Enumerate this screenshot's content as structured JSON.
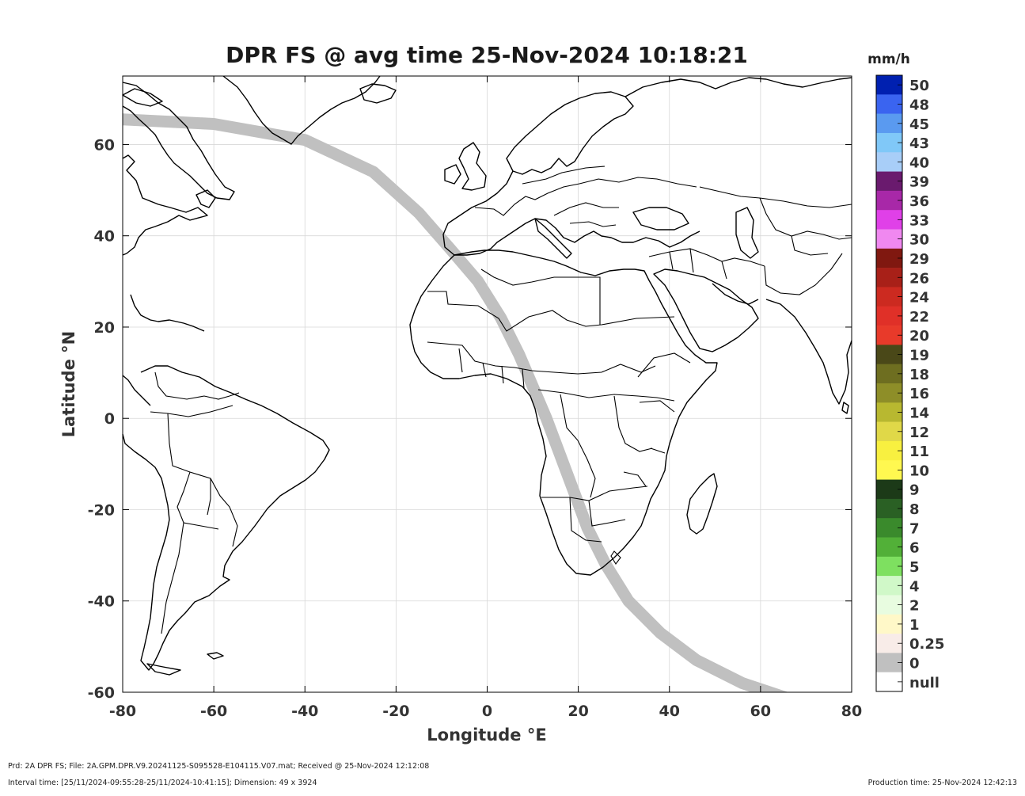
{
  "title": "DPR FS @ avg time 25-Nov-2024 10:18:21",
  "xlabel": "Longitude °E",
  "ylabel": "Latitude °N",
  "map": {
    "lon_range": [
      -80,
      80
    ],
    "lat_range": [
      -60,
      75
    ],
    "x_ticks": [
      "-80",
      "-60",
      "-40",
      "-20",
      "0",
      "20",
      "40",
      "60",
      "80"
    ],
    "y_ticks": [
      "60",
      "40",
      "20",
      "0",
      "-20",
      "-40",
      "-60"
    ],
    "grid": true,
    "swath_color": "#c0c0c0",
    "swath_track": [
      [
        -80,
        65.5
      ],
      [
        -60,
        64.5
      ],
      [
        -40,
        61
      ],
      [
        -25,
        54
      ],
      [
        -15,
        45
      ],
      [
        -8,
        37
      ],
      [
        -2,
        30
      ],
      [
        3,
        22
      ],
      [
        7,
        14
      ],
      [
        10,
        7
      ],
      [
        13,
        0
      ],
      [
        16,
        -8
      ],
      [
        19,
        -16
      ],
      [
        22,
        -24
      ],
      [
        26,
        -32
      ],
      [
        31,
        -40
      ],
      [
        38,
        -47
      ],
      [
        46,
        -53
      ],
      [
        56,
        -58
      ],
      [
        68,
        -62
      ],
      [
        80,
        -64
      ]
    ]
  },
  "colorbar": {
    "unit": "mm/h",
    "levels": [
      {
        "label": "50",
        "color": "#0020b0"
      },
      {
        "label": "48",
        "color": "#3a64f0"
      },
      {
        "label": "45",
        "color": "#5a9af0"
      },
      {
        "label": "43",
        "color": "#80c8f8"
      },
      {
        "label": "40",
        "color": "#a8cef8"
      },
      {
        "label": "39",
        "color": "#6a1a6e"
      },
      {
        "label": "36",
        "color": "#a828a8"
      },
      {
        "label": "33",
        "color": "#e040e8"
      },
      {
        "label": "30",
        "color": "#f088f0"
      },
      {
        "label": "29",
        "color": "#801810"
      },
      {
        "label": "26",
        "color": "#a82018"
      },
      {
        "label": "24",
        "color": "#cc2a20"
      },
      {
        "label": "22",
        "color": "#e03028"
      },
      {
        "label": "20",
        "color": "#e83a2a"
      },
      {
        "label": "19",
        "color": "#4a4818"
      },
      {
        "label": "18",
        "color": "#6e6e20"
      },
      {
        "label": "16",
        "color": "#8e8e28"
      },
      {
        "label": "14",
        "color": "#b8b830"
      },
      {
        "label": "12",
        "color": "#e0d848"
      },
      {
        "label": "11",
        "color": "#f8f040"
      },
      {
        "label": "10",
        "color": "#fff850"
      },
      {
        "label": "9",
        "color": "#1c3a18"
      },
      {
        "label": "8",
        "color": "#2a6024"
      },
      {
        "label": "7",
        "color": "#3a8a2c"
      },
      {
        "label": "6",
        "color": "#52b038"
      },
      {
        "label": "5",
        "color": "#7ee060"
      },
      {
        "label": "4",
        "color": "#d0f8c8"
      },
      {
        "label": "2",
        "color": "#e8fce0"
      },
      {
        "label": "1",
        "color": "#fff8c8"
      },
      {
        "label": "0.25",
        "color": "#f8ece8"
      },
      {
        "label": "0",
        "color": "#c0c0c0"
      },
      {
        "label": "null",
        "color": "#ffffff"
      }
    ]
  },
  "footer": {
    "line1": "Prd: 2A DPR FS; File: 2A.GPM.DPR.V9.20241125-S095528-E104115.V07.mat; Received @ 25-Nov-2024 12:12:08",
    "line2": "Interval time: [25/11/2024-09:55:28-25/11/2024-10:41:15]; Dimension: 49 x 3924",
    "production": "Production time: 25-Nov-2024 12:42:13"
  }
}
